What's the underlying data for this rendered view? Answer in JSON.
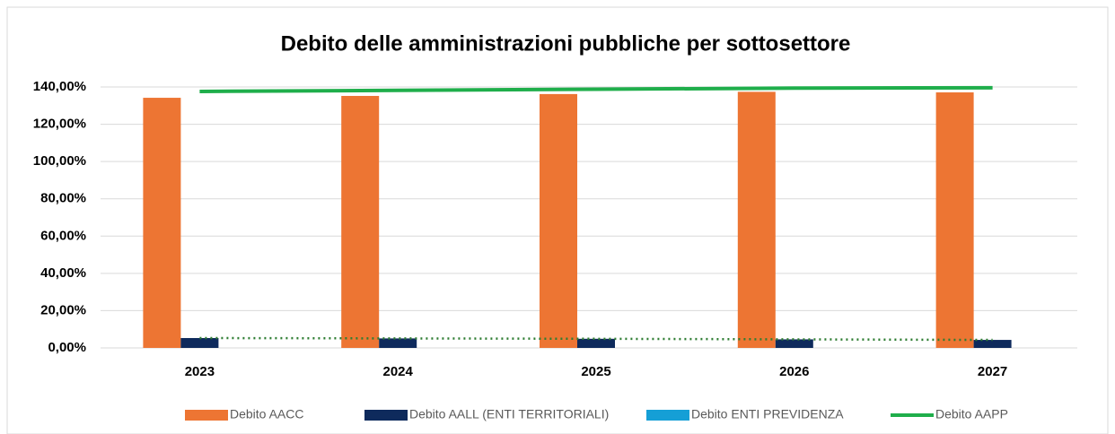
{
  "chart_data": {
    "type": "bar-line",
    "title": "Debito delle amministrazioni pubbliche per sottosettore",
    "categories": [
      "2023",
      "2024",
      "2025",
      "2026",
      "2027"
    ],
    "series": [
      {
        "name": "Debito AACC",
        "color": "#ed7533",
        "type": "bar",
        "values": [
          134.2,
          135.2,
          136.2,
          137.4,
          137.1
        ]
      },
      {
        "name": "Debito AALL (ENTI TERRITORIALI)",
        "color": "#0e2a5c",
        "type": "bar",
        "values": [
          5.3,
          5.1,
          4.9,
          4.6,
          4.3
        ]
      },
      {
        "name": "Debito ENTI PREVIDENZA",
        "color": "#159fd6",
        "type": "bar",
        "values": [
          0,
          0,
          0,
          0,
          0
        ]
      },
      {
        "name": "Debito AAPP",
        "color": "#1fae4b",
        "type": "line",
        "values": [
          137.6,
          138.2,
          138.8,
          139.4,
          139.6
        ]
      }
    ],
    "trendline": {
      "series": 1,
      "color": "#2e7d32"
    },
    "ylim": [
      0,
      140
    ],
    "yticks": [
      {
        "value": 0,
        "label": "0,00%"
      },
      {
        "value": 20,
        "label": "20,00%"
      },
      {
        "value": 40,
        "label": "40,00%"
      },
      {
        "value": 60,
        "label": "60,00%"
      },
      {
        "value": 80,
        "label": "80,00%"
      },
      {
        "value": 100,
        "label": "100,00%"
      },
      {
        "value": 120,
        "label": "120,00%"
      },
      {
        "value": 140,
        "label": "140,00%"
      }
    ],
    "grid": true,
    "legend": "bottom"
  }
}
